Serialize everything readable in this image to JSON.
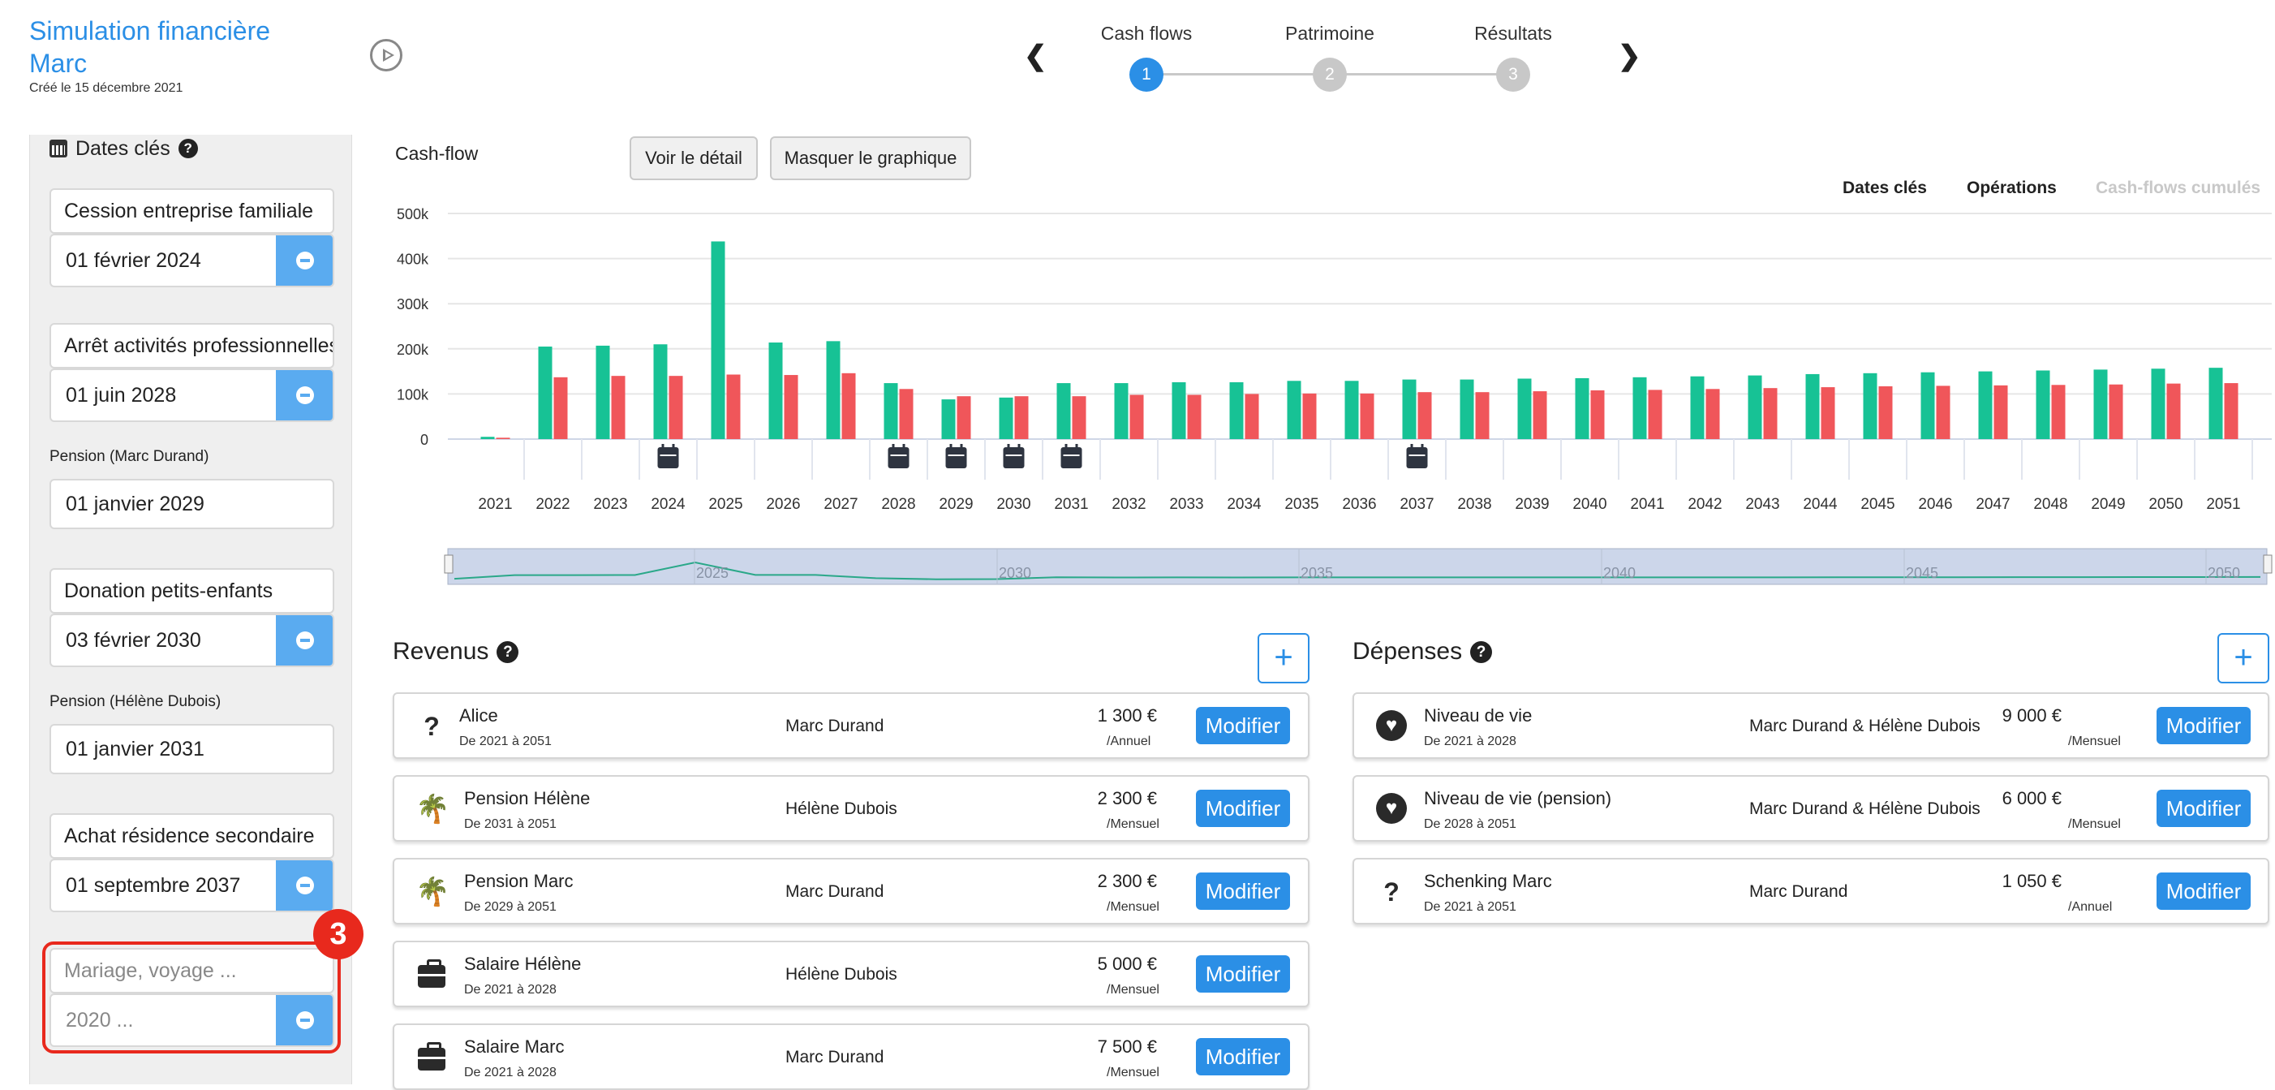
{
  "header": {
    "title": "Simulation financière Marc",
    "created": "Créé le 15 décembre 2021",
    "steps": [
      {
        "label": "Cash flows",
        "number": "1",
        "active": true
      },
      {
        "label": "Patrimoine",
        "number": "2",
        "active": false
      },
      {
        "label": "Résultats",
        "number": "3",
        "active": false
      }
    ]
  },
  "sidebar": {
    "heading": "Dates clés",
    "events": [
      {
        "name": "Cession entreprise familiale",
        "date": "01 février 2024"
      },
      {
        "name": "Arrêt activités professionnelles",
        "date": "01 juin 2028"
      },
      {
        "label": "Pension (Marc Durand)",
        "date": "01 janvier 2029"
      },
      {
        "name": "Donation petits-enfants",
        "date": "03 février 2030"
      },
      {
        "label": "Pension (Hélène Dubois)",
        "date": "01 janvier 2031"
      },
      {
        "name": "Achat résidence secondaire",
        "date": "01 septembre 2037"
      }
    ],
    "new_event": {
      "name_placeholder": "Mariage, voyage ...",
      "date_placeholder": "2020 ..."
    },
    "badge": "3"
  },
  "chart_panel": {
    "title": "Cash-flow",
    "btn_detail": "Voir le détail",
    "btn_hide": "Masquer le graphique",
    "legend": [
      {
        "label": "Dates clés",
        "enabled": true
      },
      {
        "label": "Opérations",
        "enabled": true
      },
      {
        "label": "Cash-flows cumulés",
        "enabled": false
      }
    ],
    "colors": {
      "income": "#17c295",
      "expense": "#f0565a"
    }
  },
  "chart_data": {
    "type": "bar",
    "categories": [
      "2021",
      "2022",
      "2023",
      "2024",
      "2025",
      "2026",
      "2027",
      "2028",
      "2029",
      "2030",
      "2031",
      "2032",
      "2033",
      "2034",
      "2035",
      "2036",
      "2037",
      "2038",
      "2039",
      "2040",
      "2041",
      "2042",
      "2043",
      "2044",
      "2045",
      "2046",
      "2047",
      "2048",
      "2049",
      "2050",
      "2051"
    ],
    "series": [
      {
        "values": [
          5,
          205,
          207,
          210,
          438,
          214,
          217,
          124,
          88,
          92,
          124,
          124,
          126,
          126,
          129,
          129,
          132,
          132,
          134,
          135,
          137,
          139,
          141,
          144,
          146,
          148,
          150,
          152,
          154,
          156,
          158
        ]
      },
      {
        "values": [
          3,
          137,
          140,
          140,
          143,
          142,
          146,
          111,
          95,
          95,
          95,
          98,
          98,
          100,
          101,
          101,
          104,
          104,
          106,
          108,
          109,
          111,
          113,
          115,
          117,
          118,
          119,
          120,
          121,
          123,
          124
        ]
      }
    ],
    "ylim": [
      0,
      500
    ],
    "yticks": [
      "0",
      "100k",
      "200k",
      "300k",
      "400k",
      "500k"
    ],
    "key_date_years": [
      "2024",
      "2028",
      "2029",
      "2030",
      "2031",
      "2037"
    ],
    "navigator_labels": [
      "2025",
      "2030",
      "2035",
      "2040",
      "2045",
      "2050"
    ],
    "grid": true
  },
  "revenus": {
    "title": "Revenus",
    "add_label": "+",
    "items": [
      {
        "icon": "question-icon",
        "name": "Alice",
        "period": "De 2021 à 2051",
        "person": "Marc Durand",
        "amount": "1 300 €",
        "freq": "/Annuel",
        "button": "Modifier"
      },
      {
        "icon": "palm-tree-icon",
        "name": "Pension Hélène",
        "period": "De 2031 à 2051",
        "person": "Hélène Dubois",
        "amount": "2 300 €",
        "freq": "/Mensuel",
        "button": "Modifier"
      },
      {
        "icon": "palm-tree-icon",
        "name": "Pension Marc",
        "period": "De 2029 à 2051",
        "person": "Marc Durand",
        "amount": "2 300 €",
        "freq": "/Mensuel",
        "button": "Modifier"
      },
      {
        "icon": "briefcase-icon",
        "name": "Salaire Hélène",
        "period": "De 2021 à 2028",
        "person": "Hélène Dubois",
        "amount": "5 000 €",
        "freq": "/Mensuel",
        "button": "Modifier"
      },
      {
        "icon": "briefcase-icon",
        "name": "Salaire Marc",
        "period": "De 2021 à 2028",
        "person": "Marc Durand",
        "amount": "7 500 €",
        "freq": "/Mensuel",
        "button": "Modifier"
      }
    ]
  },
  "depenses": {
    "title": "Dépenses",
    "add_label": "+",
    "items": [
      {
        "icon": "heart-icon",
        "name": "Niveau de vie",
        "period": "De 2021 à 2028",
        "person": "Marc Durand & Hélène Dubois",
        "amount": "9 000 €",
        "freq": "/Mensuel",
        "button": "Modifier"
      },
      {
        "icon": "heart-icon",
        "name": "Niveau de vie (pension)",
        "period": "De 2028 à 2051",
        "person": "Marc Durand & Hélène Dubois",
        "amount": "6 000 €",
        "freq": "/Mensuel",
        "button": "Modifier"
      },
      {
        "icon": "question-icon",
        "name": "Schenking Marc",
        "period": "De 2021 à 2051",
        "person": "Marc Durand",
        "amount": "1 050 €",
        "freq": "/Annuel",
        "button": "Modifier"
      }
    ]
  }
}
